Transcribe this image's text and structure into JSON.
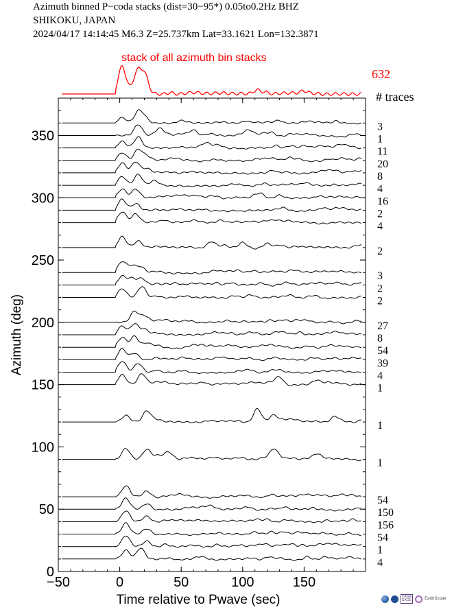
{
  "header": {
    "line1": "Azimuth binned P−coda stacks (dist=30−95*)  0.05to0.2Hz  BHZ",
    "line2": "SHIKOKU, JAPAN",
    "line3": "2024/04/17  14:14:45  M6.3  Z=25.737km Lat=33.1621 Lon=132.3871"
  },
  "logos": {
    "cage_label": "CAGE\nSAGE",
    "earthscope_label": "EarthScope"
  },
  "chart_data": {
    "type": "line",
    "title": "stack of all azimuth bin stacks",
    "xlabel": "Time relative to Pwave (sec)",
    "ylabel": "Azimuth (deg)",
    "xlim": [
      -50,
      200
    ],
    "ylim": [
      0,
      380
    ],
    "xticks": [
      -50,
      0,
      50,
      100,
      150
    ],
    "xtick_labels": [
      "−50",
      "0",
      "50",
      "100",
      "150"
    ],
    "yticks": [
      0,
      50,
      100,
      150,
      200,
      250,
      300,
      350
    ],
    "yticks_labels": [
      "0",
      "50",
      "100",
      "150",
      "200",
      "250",
      "300",
      "350"
    ],
    "trace_count_header": "# traces",
    "total_traces": "632",
    "colors": {
      "stack": "#ff0000",
      "traces": "#000000"
    },
    "stack_peaks": [
      {
        "t": 2,
        "amp": 1.0
      },
      {
        "t": 14,
        "amp": 0.75
      },
      {
        "t": 20,
        "amp": 0.7
      },
      {
        "t": 112,
        "amp": 0.1
      },
      {
        "t": 150,
        "amp": 0.08
      }
    ],
    "bins": [
      {
        "azimuth": 360,
        "traces": "3",
        "peaks": [
          {
            "t": 2,
            "amp": 0.5
          },
          {
            "t": 15,
            "amp": 1.0
          },
          {
            "t": 20,
            "amp": 0.5
          }
        ]
      },
      {
        "azimuth": 350,
        "traces": "1",
        "peaks": [
          {
            "t": 15,
            "amp": 1.0
          },
          {
            "t": 32,
            "amp": 0.6
          },
          {
            "t": 60,
            "amp": 0.3
          },
          {
            "t": 105,
            "amp": 0.3
          }
        ]
      },
      {
        "azimuth": 340,
        "traces": "11",
        "peaks": [
          {
            "t": 2,
            "amp": 0.6
          },
          {
            "t": 15,
            "amp": 1.0
          },
          {
            "t": 70,
            "amp": 0.3
          }
        ]
      },
      {
        "azimuth": 330,
        "traces": "20",
        "peaks": [
          {
            "t": 2,
            "amp": 0.7
          },
          {
            "t": 15,
            "amp": 1.0
          },
          {
            "t": 22,
            "amp": 0.4
          }
        ]
      },
      {
        "azimuth": 320,
        "traces": "8",
        "peaks": [
          {
            "t": 2,
            "amp": 0.9
          },
          {
            "t": 13,
            "amp": 1.0
          },
          {
            "t": 22,
            "amp": 0.4
          }
        ]
      },
      {
        "azimuth": 310,
        "traces": "4",
        "peaks": [
          {
            "t": 2,
            "amp": 0.8
          },
          {
            "t": 15,
            "amp": 1.0
          },
          {
            "t": 28,
            "amp": 0.4
          }
        ]
      },
      {
        "azimuth": 300,
        "traces": "16",
        "peaks": [
          {
            "t": 2,
            "amp": 0.8
          },
          {
            "t": 13,
            "amp": 0.8
          },
          {
            "t": 115,
            "amp": 0.4
          }
        ]
      },
      {
        "azimuth": 290,
        "traces": "2",
        "peaks": [
          {
            "t": 2,
            "amp": 1.0
          },
          {
            "t": 13,
            "amp": 0.6
          }
        ]
      },
      {
        "azimuth": 280,
        "traces": "4",
        "peaks": [
          {
            "t": 2,
            "amp": 1.0
          },
          {
            "t": 13,
            "amp": 0.8
          }
        ]
      },
      {
        "azimuth": 260,
        "traces": "2",
        "peaks": [
          {
            "t": 2,
            "amp": 1.0
          },
          {
            "t": 15,
            "amp": 0.6
          },
          {
            "t": 75,
            "amp": 0.5
          },
          {
            "t": 100,
            "amp": 0.5
          },
          {
            "t": 120,
            "amp": 0.4
          }
        ]
      },
      {
        "azimuth": 240,
        "traces": "3",
        "peaks": [
          {
            "t": 2,
            "amp": 1.0
          },
          {
            "t": 10,
            "amp": 0.6
          },
          {
            "t": 17,
            "amp": 0.5
          }
        ]
      },
      {
        "azimuth": 230,
        "traces": "2",
        "peaks": [
          {
            "t": 2,
            "amp": 0.8
          },
          {
            "t": 10,
            "amp": 0.6
          },
          {
            "t": 18,
            "amp": 0.6
          }
        ]
      },
      {
        "azimuth": 220,
        "traces": "2",
        "peaks": [
          {
            "t": 2,
            "amp": 0.8
          },
          {
            "t": 18,
            "amp": 1.0
          }
        ]
      },
      {
        "azimuth": 200,
        "traces": "27",
        "peaks": [
          {
            "t": 12,
            "amp": 1.0
          },
          {
            "t": 20,
            "amp": 0.6
          }
        ]
      },
      {
        "azimuth": 190,
        "traces": "8",
        "peaks": [
          {
            "t": 2,
            "amp": 0.8
          },
          {
            "t": 12,
            "amp": 1.0
          },
          {
            "t": 20,
            "amp": 0.5
          }
        ]
      },
      {
        "azimuth": 180,
        "traces": "54",
        "peaks": [
          {
            "t": 2,
            "amp": 0.9
          },
          {
            "t": 12,
            "amp": 1.0
          },
          {
            "t": 22,
            "amp": 0.4
          }
        ]
      },
      {
        "azimuth": 170,
        "traces": "39",
        "peaks": [
          {
            "t": 2,
            "amp": 1.0
          },
          {
            "t": 12,
            "amp": 0.6
          }
        ]
      },
      {
        "azimuth": 160,
        "traces": "4",
        "peaks": [
          {
            "t": 2,
            "amp": 1.0
          },
          {
            "t": 15,
            "amp": 0.8
          }
        ]
      },
      {
        "azimuth": 150,
        "traces": "1",
        "peaks": [
          {
            "t": 2,
            "amp": 0.9
          },
          {
            "t": 18,
            "amp": 1.0
          },
          {
            "t": 130,
            "amp": 0.7
          },
          {
            "t": 160,
            "amp": 0.4
          }
        ]
      },
      {
        "azimuth": 120,
        "traces": "1",
        "peaks": [
          {
            "t": 5,
            "amp": 0.6
          },
          {
            "t": 22,
            "amp": 1.0
          },
          {
            "t": 112,
            "amp": 1.0
          },
          {
            "t": 125,
            "amp": 0.6
          },
          {
            "t": 175,
            "amp": 0.5
          }
        ]
      },
      {
        "azimuth": 90,
        "traces": "1",
        "peaks": [
          {
            "t": 5,
            "amp": 1.0
          },
          {
            "t": 22,
            "amp": 0.9
          },
          {
            "t": 40,
            "amp": 0.5
          },
          {
            "t": 125,
            "amp": 0.8
          },
          {
            "t": 160,
            "amp": 0.4
          }
        ]
      },
      {
        "azimuth": 60,
        "traces": "54",
        "peaks": [
          {
            "t": 5,
            "amp": 1.0
          },
          {
            "t": 22,
            "amp": 0.5
          }
        ]
      },
      {
        "azimuth": 50,
        "traces": "150",
        "peaks": [
          {
            "t": 5,
            "amp": 1.0
          },
          {
            "t": 22,
            "amp": 0.5
          }
        ]
      },
      {
        "azimuth": 40,
        "traces": "156",
        "peaks": [
          {
            "t": 5,
            "amp": 1.0
          },
          {
            "t": 22,
            "amp": 0.5
          }
        ]
      },
      {
        "azimuth": 30,
        "traces": "54",
        "peaks": [
          {
            "t": 5,
            "amp": 1.0
          },
          {
            "t": 22,
            "amp": 0.5
          }
        ]
      },
      {
        "azimuth": 20,
        "traces": "1",
        "peaks": [
          {
            "t": 5,
            "amp": 1.0
          },
          {
            "t": 22,
            "amp": 0.5
          }
        ]
      },
      {
        "azimuth": 10,
        "traces": "4",
        "peaks": [
          {
            "t": 5,
            "amp": 0.8
          },
          {
            "t": 17,
            "amp": 1.0
          }
        ]
      }
    ]
  }
}
